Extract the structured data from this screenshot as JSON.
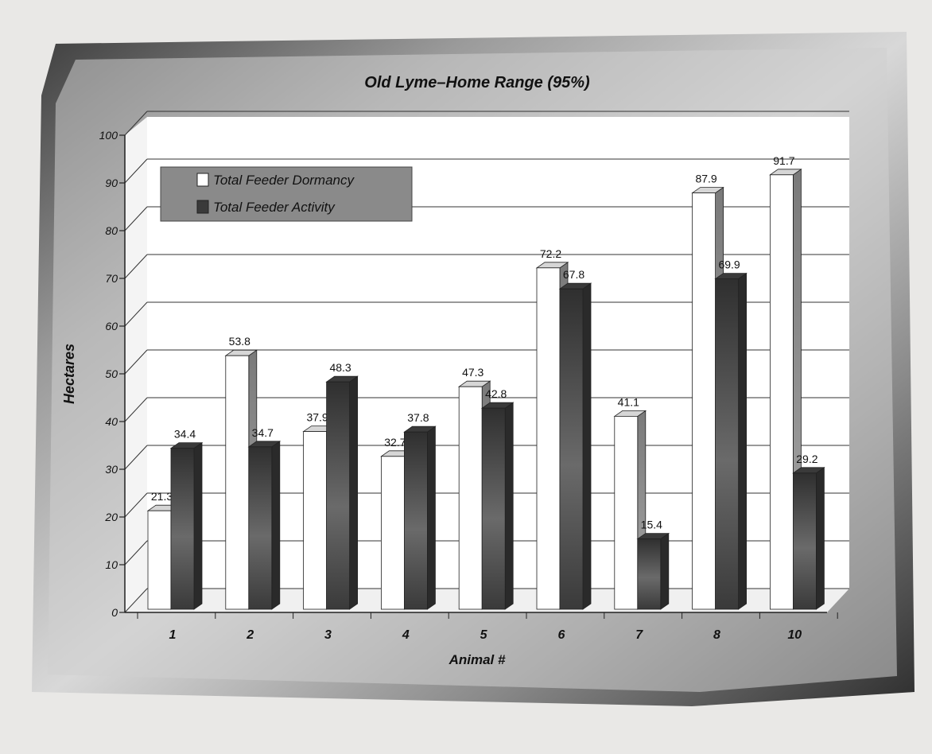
{
  "chart_data": {
    "type": "bar",
    "title": "Old Lyme–Home Range (95%)",
    "xlabel": "Animal #",
    "ylabel": "Hectares",
    "ylim": [
      0,
      100
    ],
    "yticks": [
      "0",
      "10",
      "20",
      "30",
      "40",
      "50",
      "60",
      "70",
      "80",
      "90",
      "100"
    ],
    "categories": [
      "1",
      "2",
      "3",
      "4",
      "5",
      "6",
      "7",
      "8",
      "10"
    ],
    "series": [
      {
        "name": "Total Feeder Dormancy",
        "values": [
          21.3,
          53.8,
          37.9,
          32.7,
          47.3,
          72.2,
          41.1,
          87.9,
          91.7
        ]
      },
      {
        "name": "Total Feeder Activity",
        "values": [
          34.4,
          34.7,
          48.3,
          37.8,
          42.8,
          67.8,
          15.4,
          69.9,
          29.2
        ]
      }
    ],
    "legend_position": "top-left",
    "grid": true
  },
  "colors": {
    "dormancy_front": "#ffffff",
    "dormancy_side": "#8c8c8c",
    "dormancy_top": "#d6d6d6",
    "activity_front": "#4e4e4e",
    "activity_side": "#2a2a2a",
    "activity_top": "#3a3a3a",
    "plot_background": "#ffffff",
    "legend_background": "#8a8a8a"
  }
}
